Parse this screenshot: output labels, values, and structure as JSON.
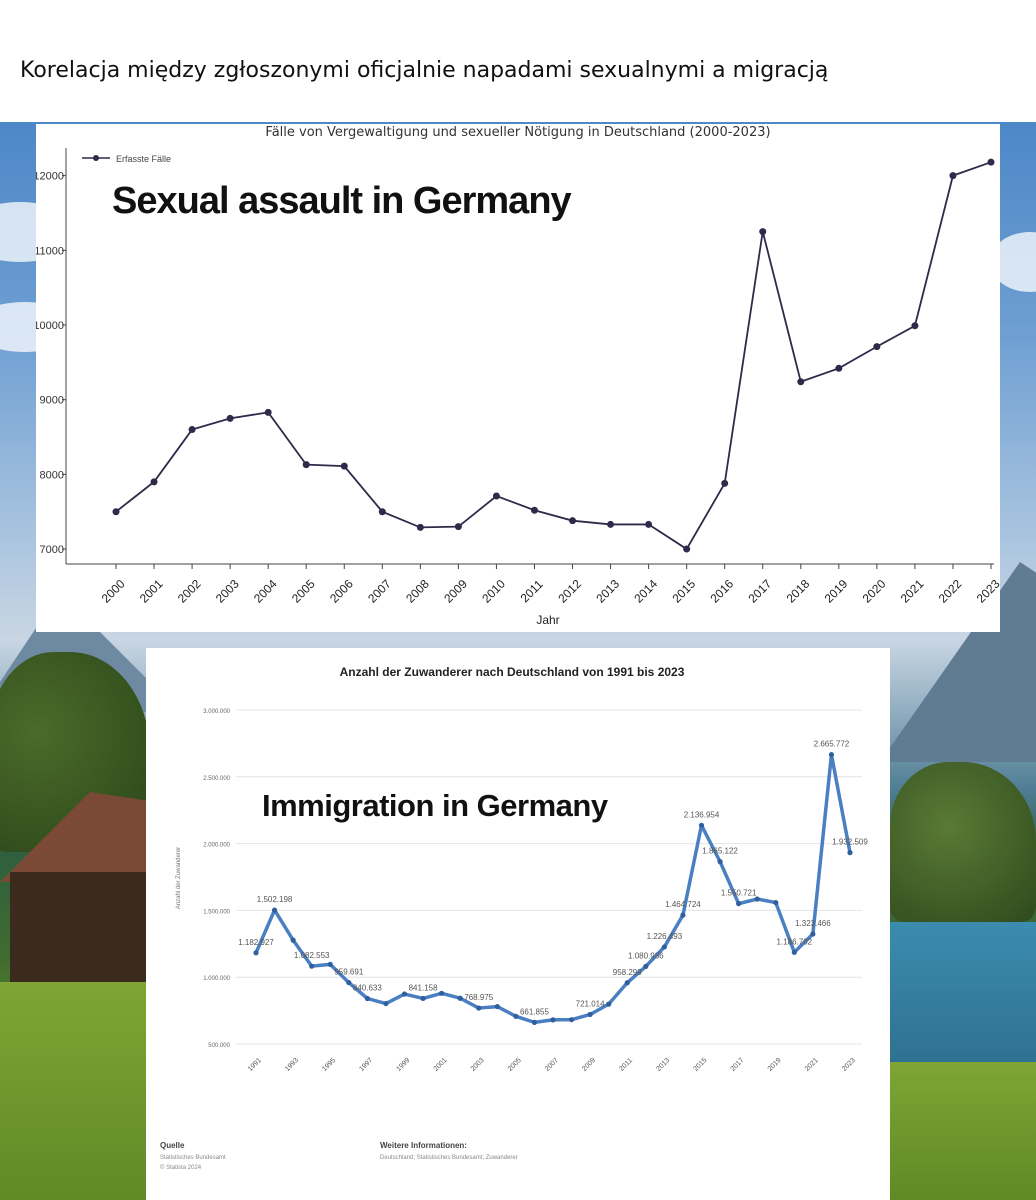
{
  "post_title": "Korelacja między zgłoszonymi oficjalnie napadami sexualnymi a migracją",
  "chart_data": [
    {
      "type": "line",
      "title": "Fälle von Vergewaltigung und sexueller Nötigung in Deutschland (2000-2023)",
      "overlay_label": "Sexual assault in Germany",
      "legend": {
        "label": "Erfasste Fälle",
        "position": "top-left"
      },
      "xlabel": "Jahr",
      "x": [
        "2000",
        "2001",
        "2002",
        "2003",
        "2004",
        "2005",
        "2006",
        "2007",
        "2008",
        "2009",
        "2010",
        "2011",
        "2012",
        "2013",
        "2014",
        "2015",
        "2016",
        "2017",
        "2018",
        "2019",
        "2020",
        "2021",
        "2022",
        "2023"
      ],
      "values": [
        7500,
        7900,
        8600,
        8750,
        8830,
        8130,
        8110,
        7500,
        7290,
        7300,
        7710,
        7520,
        7380,
        7330,
        7330,
        7000,
        7880,
        11250,
        9240,
        9420,
        9710,
        9990,
        12000,
        12180
      ],
      "y_tick_labels": [
        "7000",
        "8000",
        "9000",
        "10000",
        "11000",
        "12000"
      ],
      "y_tick_values": [
        7000,
        8000,
        9000,
        10000,
        11000,
        12000
      ],
      "ylim": [
        6800,
        12450
      ],
      "grid": false,
      "line_color": "#2e2a4a"
    },
    {
      "type": "line",
      "title": "Anzahl der Zuwanderer nach Deutschland von 1991 bis 2023",
      "overlay_label": "Immigration in Germany",
      "ylabel": "Anzahl der Zuwanderer",
      "x": [
        1991,
        1992,
        1993,
        1994,
        1995,
        1996,
        1997,
        1998,
        1999,
        2000,
        2001,
        2002,
        2003,
        2004,
        2005,
        2006,
        2007,
        2008,
        2009,
        2010,
        2011,
        2012,
        2013,
        2014,
        2015,
        2016,
        2017,
        2018,
        2019,
        2020,
        2021,
        2022,
        2023
      ],
      "values": [
        1182927,
        1502198,
        1277408,
        1082553,
        1096048,
        959691,
        840633,
        802456,
        874023,
        841158,
        879217,
        842543,
        768975,
        780175,
        707352,
        661855,
        680766,
        682146,
        721014,
        798282,
        958299,
        1080936,
        1226493,
        1464724,
        2136954,
        1865122,
        1550721,
        1585112,
        1558612,
        1186702,
        1323466,
        2665772,
        1932509
      ],
      "point_labels": [
        {
          "i": 0,
          "text": "1.182.927"
        },
        {
          "i": 1,
          "text": "1.502.198"
        },
        {
          "i": 3,
          "text": "1.082.553"
        },
        {
          "i": 5,
          "text": "959.691"
        },
        {
          "i": 6,
          "text": "840.633"
        },
        {
          "i": 9,
          "text": "841.158"
        },
        {
          "i": 12,
          "text": "768.975"
        },
        {
          "i": 15,
          "text": "661.855"
        },
        {
          "i": 18,
          "text": "721.014"
        },
        {
          "i": 20,
          "text": "958.299"
        },
        {
          "i": 21,
          "text": "1.080.936"
        },
        {
          "i": 22,
          "text": "1.226.493"
        },
        {
          "i": 23,
          "text": "1.464.724"
        },
        {
          "i": 24,
          "text": "2.136.954"
        },
        {
          "i": 25,
          "text": "1.865.122"
        },
        {
          "i": 26,
          "text": "1.550.721"
        },
        {
          "i": 29,
          "text": "1.186.702"
        },
        {
          "i": 30,
          "text": "1.323.466"
        },
        {
          "i": 31,
          "text": "2.665.772"
        },
        {
          "i": 32,
          "text": "1.932.509"
        }
      ],
      "x_tick_labels": [
        "1991",
        "1993",
        "1995",
        "1997",
        "1999",
        "2001",
        "2003",
        "2005",
        "2007",
        "2009",
        "2011",
        "2013",
        "2015",
        "2017",
        "2019",
        "2021",
        "2023"
      ],
      "y_tick_labels": [
        "500.000",
        "1.000.000",
        "1.500.000",
        "2.000.000",
        "2.500.000",
        "3.000.000"
      ],
      "y_tick_values": [
        500000,
        1000000,
        1500000,
        2000000,
        2500000,
        3000000
      ],
      "ylim": [
        500000,
        3000000
      ],
      "grid": true,
      "line_color": "#4a7fc1",
      "footer": {
        "source_heading": "Quelle",
        "source_lines": [
          "Statistisches Bundesamt",
          "© Statista 2024"
        ],
        "info_heading": "Weitere Informationen:",
        "info_lines": [
          "Deutschland; Statistisches Bundesamt; Zuwanderer"
        ]
      }
    }
  ]
}
